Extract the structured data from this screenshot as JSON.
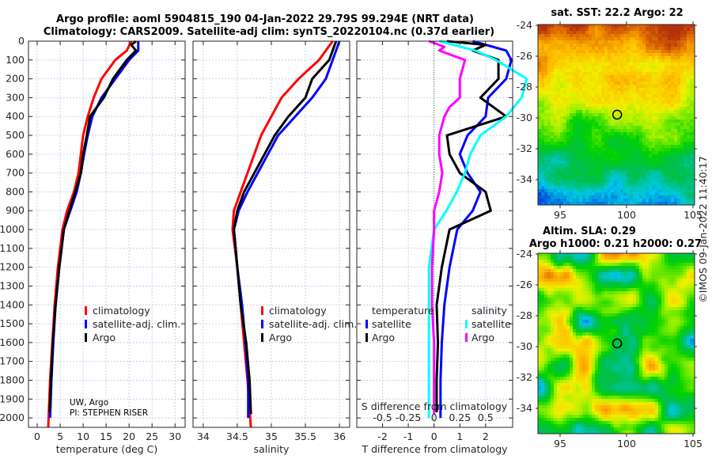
{
  "title": {
    "line1": "Argo profile: aoml 5904815_190 04-Jan-2022 29.79S 99.294E (NRT data)",
    "line2": "Climatology: CARS2009. Satellite-adj clim: synTS_20220104.nc (0.37d earlier)"
  },
  "colors": {
    "climatology": "#ff0000",
    "satellite_adj": "#0000ff",
    "argo": "#000000",
    "sal_satellite": "#00ffff",
    "sal_argo": "#ff00ff"
  },
  "chart_data": [
    {
      "type": "line",
      "name": "temperature",
      "xlabel": "temperature (deg C)",
      "ylabel": "",
      "xlim": [
        -1.9,
        32.2
      ],
      "ylim": [
        2050,
        0
      ],
      "xticks": [
        "0",
        "5",
        "10",
        "15",
        "20",
        "25",
        "30"
      ],
      "yticks": [
        "0",
        "100",
        "200",
        "300",
        "400",
        "500",
        "600",
        "700",
        "800",
        "900",
        "1000",
        "1100",
        "1200",
        "1300",
        "1400",
        "1500",
        "1600",
        "1700",
        "1800",
        "1900",
        "2000"
      ],
      "legend": [
        "climatology",
        "satellite-adj. clim.",
        "Argo"
      ],
      "credit": [
        "UW, Argo",
        "PI: STEPHEN RISER"
      ],
      "series": [
        {
          "name": "climatology",
          "color": "#ff0000",
          "points": [
            [
              20.5,
              0
            ],
            [
              19.5,
              50
            ],
            [
              17,
              100
            ],
            [
              14,
              200
            ],
            [
              12.3,
              300
            ],
            [
              11,
              400
            ],
            [
              10,
              500
            ],
            [
              9.5,
              600
            ],
            [
              9,
              700
            ],
            [
              8,
              800
            ],
            [
              6.5,
              900
            ],
            [
              5.5,
              1000
            ],
            [
              4.5,
              1200
            ],
            [
              3.8,
              1400
            ],
            [
              3.3,
              1600
            ],
            [
              2.8,
              1800
            ],
            [
              2.4,
              2050
            ]
          ]
        },
        {
          "name": "satellite-adj. clim.",
          "color": "#0000ff",
          "points": [
            [
              22,
              0
            ],
            [
              22,
              50
            ],
            [
              20,
              100
            ],
            [
              17,
              200
            ],
            [
              14,
              300
            ],
            [
              12,
              400
            ],
            [
              11,
              500
            ],
            [
              10.2,
              600
            ],
            [
              9.5,
              700
            ],
            [
              8.6,
              800
            ],
            [
              7.2,
              900
            ],
            [
              5.8,
              1000
            ],
            [
              4.8,
              1200
            ],
            [
              4,
              1400
            ],
            [
              3.5,
              1600
            ],
            [
              3.1,
              1800
            ],
            [
              2.8,
              2000
            ]
          ]
        },
        {
          "name": "Argo",
          "color": "#000000",
          "points": [
            [
              21.5,
              0
            ],
            [
              20.5,
              20
            ],
            [
              21.5,
              50
            ],
            [
              19.5,
              100
            ],
            [
              16.5,
              200
            ],
            [
              14.5,
              300
            ],
            [
              11.5,
              400
            ],
            [
              10.8,
              500
            ],
            [
              10,
              600
            ],
            [
              9.5,
              700
            ],
            [
              8.3,
              800
            ],
            [
              7,
              900
            ],
            [
              5.8,
              1000
            ],
            [
              4.8,
              1200
            ],
            [
              4,
              1400
            ],
            [
              3.4,
              1600
            ],
            [
              3,
              1800
            ],
            [
              2.7,
              1970
            ]
          ]
        }
      ]
    },
    {
      "type": "line",
      "name": "salinity",
      "xlabel": "salinity",
      "xlim": [
        33.85,
        36.15
      ],
      "ylim": [
        2050,
        0
      ],
      "xticks": [
        "34",
        "34.5",
        "35",
        "35.5",
        "36"
      ],
      "legend": [
        "climatology",
        "satellite-adj. clim.",
        "Argo"
      ],
      "series": [
        {
          "name": "climatology",
          "color": "#ff0000",
          "points": [
            [
              35.9,
              0
            ],
            [
              35.7,
              100
            ],
            [
              35.4,
              200
            ],
            [
              35.15,
              300
            ],
            [
              35,
              400
            ],
            [
              34.85,
              500
            ],
            [
              34.75,
              600
            ],
            [
              34.65,
              700
            ],
            [
              34.55,
              800
            ],
            [
              34.45,
              900
            ],
            [
              34.43,
              1000
            ],
            [
              34.5,
              1200
            ],
            [
              34.55,
              1400
            ],
            [
              34.6,
              1600
            ],
            [
              34.65,
              1800
            ],
            [
              34.7,
              2050
            ]
          ]
        },
        {
          "name": "satellite-adj. clim.",
          "color": "#0000ff",
          "points": [
            [
              36,
              0
            ],
            [
              35.9,
              100
            ],
            [
              35.8,
              200
            ],
            [
              35.6,
              300
            ],
            [
              35.35,
              400
            ],
            [
              35.1,
              500
            ],
            [
              34.95,
              600
            ],
            [
              34.8,
              700
            ],
            [
              34.65,
              800
            ],
            [
              34.52,
              900
            ],
            [
              34.45,
              1000
            ],
            [
              34.5,
              1200
            ],
            [
              34.57,
              1400
            ],
            [
              34.62,
              1600
            ],
            [
              34.66,
              1800
            ],
            [
              34.66,
              2000
            ]
          ]
        },
        {
          "name": "Argo",
          "color": "#000000",
          "points": [
            [
              35.95,
              0
            ],
            [
              35.9,
              50
            ],
            [
              35.85,
              100
            ],
            [
              35.6,
              200
            ],
            [
              35.5,
              300
            ],
            [
              35.25,
              400
            ],
            [
              35.05,
              500
            ],
            [
              34.9,
              600
            ],
            [
              34.75,
              700
            ],
            [
              34.6,
              800
            ],
            [
              34.5,
              900
            ],
            [
              34.45,
              1000
            ],
            [
              34.5,
              1200
            ],
            [
              34.55,
              1400
            ],
            [
              34.63,
              1600
            ],
            [
              34.68,
              1800
            ],
            [
              34.7,
              1980
            ]
          ]
        }
      ]
    },
    {
      "type": "line",
      "name": "difference",
      "xlabel": "T difference from climatology",
      "x2label": "S difference from climatology",
      "xlim": [
        -3,
        3.05
      ],
      "ylim": [
        2050,
        0
      ],
      "xticks": [
        "-2",
        "-1",
        "0",
        "1",
        "2"
      ],
      "x2ticks": [
        "-0.5",
        "-0.25",
        "0",
        "0.25",
        "0.5"
      ],
      "legend": {
        "temperature": "temperature",
        "salinity": "salinity",
        "items": [
          "satellite",
          "Argo",
          "satellite",
          "Argo"
        ]
      },
      "series": [
        {
          "name": "T satellite",
          "color": "#0000ff",
          "points": [
            [
              1.5,
              0
            ],
            [
              2.8,
              50
            ],
            [
              3,
              100
            ],
            [
              2.8,
              200
            ],
            [
              2.1,
              300
            ],
            [
              2,
              400
            ],
            [
              1.3,
              500
            ],
            [
              1,
              600
            ],
            [
              1.3,
              700
            ],
            [
              1.8,
              800
            ],
            [
              1.5,
              900
            ],
            [
              0.9,
              1000
            ],
            [
              0.6,
              1200
            ],
            [
              0.4,
              1400
            ],
            [
              0.3,
              1600
            ],
            [
              0.25,
              1800
            ],
            [
              0.25,
              2000
            ]
          ]
        },
        {
          "name": "T Argo",
          "color": "#000000",
          "points": [
            [
              0.5,
              0
            ],
            [
              2,
              20
            ],
            [
              1.5,
              50
            ],
            [
              2.5,
              100
            ],
            [
              2.5,
              200
            ],
            [
              1.8,
              300
            ],
            [
              2.8,
              400
            ],
            [
              0.5,
              500
            ],
            [
              0.6,
              600
            ],
            [
              1,
              700
            ],
            [
              2,
              800
            ],
            [
              2.2,
              900
            ],
            [
              0.6,
              1000
            ],
            [
              0.3,
              1200
            ],
            [
              0.1,
              1400
            ],
            [
              0.15,
              1600
            ],
            [
              0.1,
              1800
            ],
            [
              0.1,
              1970
            ]
          ]
        },
        {
          "name": "S satellite",
          "color": "#00ffff",
          "salinity": true,
          "points": [
            [
              0.05,
              0
            ],
            [
              0.4,
              50
            ],
            [
              0.6,
              100
            ],
            [
              0.9,
              200
            ],
            [
              0.85,
              300
            ],
            [
              0.7,
              400
            ],
            [
              0.45,
              500
            ],
            [
              0.35,
              600
            ],
            [
              0.3,
              700
            ],
            [
              0.22,
              800
            ],
            [
              0.12,
              900
            ],
            [
              0,
              1000
            ],
            [
              -0.05,
              1200
            ],
            [
              -0.05,
              1400
            ],
            [
              -0.05,
              1600
            ],
            [
              -0.05,
              1800
            ],
            [
              -0.05,
              2000
            ]
          ]
        },
        {
          "name": "S Argo",
          "color": "#ff00ff",
          "salinity": true,
          "points": [
            [
              -0.05,
              0
            ],
            [
              0.1,
              30
            ],
            [
              0.05,
              50
            ],
            [
              0.3,
              100
            ],
            [
              0.25,
              200
            ],
            [
              0.25,
              300
            ],
            [
              0.15,
              350
            ],
            [
              0.1,
              400
            ],
            [
              0.05,
              500
            ],
            [
              0.05,
              600
            ],
            [
              0.08,
              700
            ],
            [
              0.05,
              800
            ],
            [
              0,
              900
            ],
            [
              0,
              1000
            ],
            [
              -0.02,
              1200
            ],
            [
              -0.02,
              1400
            ],
            [
              0,
              1600
            ],
            [
              0,
              1800
            ],
            [
              0,
              1980
            ]
          ]
        }
      ]
    },
    {
      "type": "heatmap",
      "name": "sst-map",
      "title": "sat. SST: 22.2 Argo: 22",
      "xticks": [
        "95",
        "100",
        "105"
      ],
      "yticks": [
        "-24",
        "-26",
        "-28",
        "-30",
        "-32",
        "-34"
      ],
      "marker": [
        99.294,
        -29.79
      ]
    },
    {
      "type": "heatmap",
      "name": "sla-map",
      "title1": "Altim. SLA: 0.29",
      "title2": "Argo h1000: 0.21 h2000: 0.27",
      "xticks": [
        "95",
        "100",
        "105"
      ],
      "yticks": [
        "-24",
        "-26",
        "-28",
        "-30",
        "-32",
        "-34"
      ],
      "marker": [
        99.294,
        -29.79
      ]
    }
  ],
  "footer": "©IMOS 09-Jan-2022 11:40:17"
}
